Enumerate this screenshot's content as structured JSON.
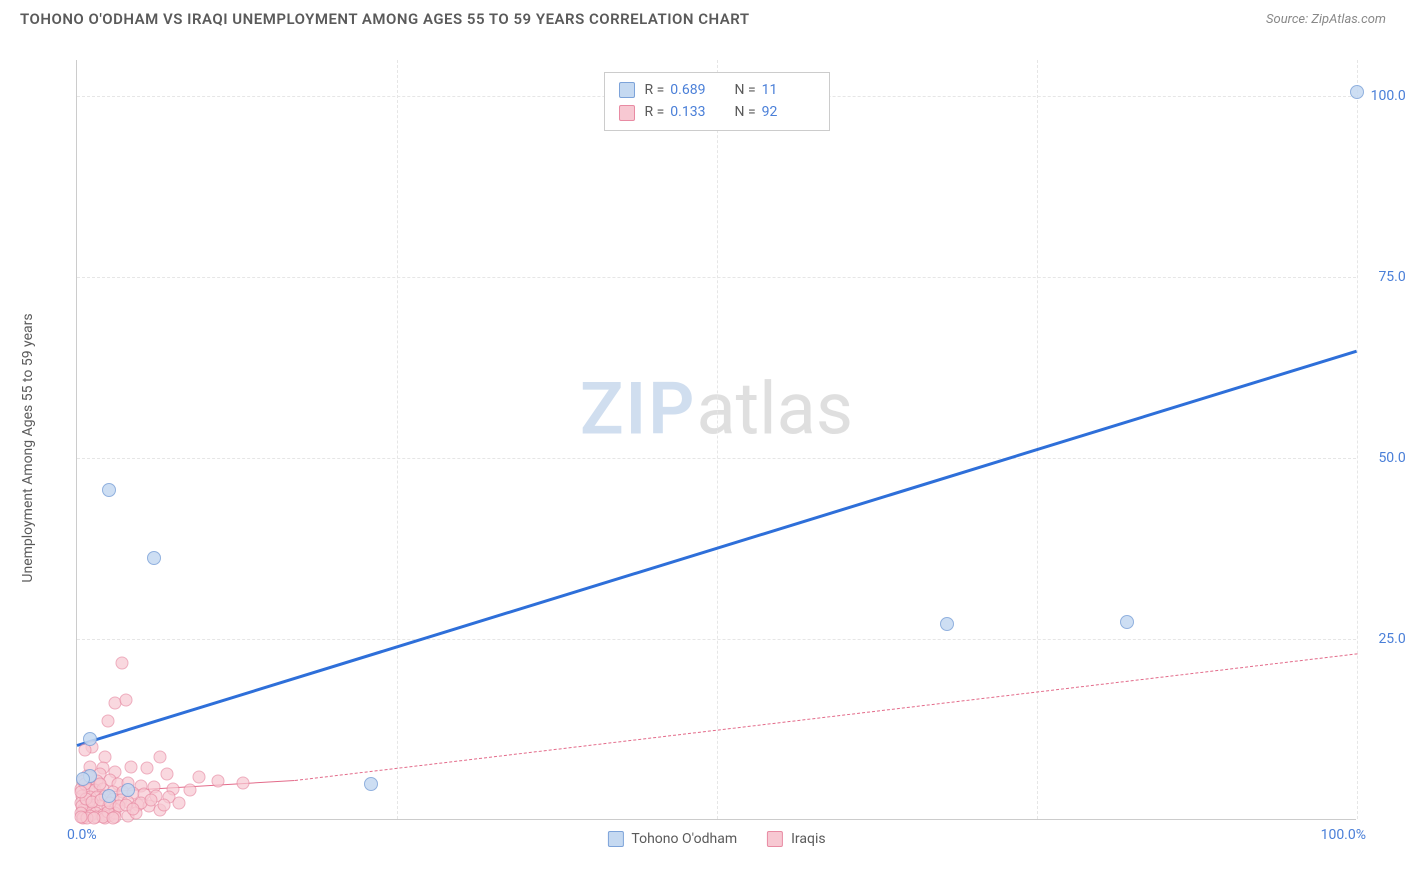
{
  "title": "TOHONO O'ODHAM VS IRAQI UNEMPLOYMENT AMONG AGES 55 TO 59 YEARS CORRELATION CHART",
  "source": "Source: ZipAtlas.com",
  "chart": {
    "type": "scatter",
    "background_color": "#ffffff",
    "grid_color": "#e6e6e6",
    "axis_color": "#cccccc",
    "ylabel": "Unemployment Among Ages 55 to 59 years",
    "label_fontsize": 14,
    "label_color": "#5a5a5a",
    "xlim": [
      0,
      100
    ],
    "ylim": [
      0,
      105
    ],
    "xtick_labels": [
      "0.0%",
      "100.0%"
    ],
    "ytick_labels": [
      "25.0%",
      "50.0%",
      "75.0%",
      "100.0%"
    ],
    "ytick_positions": [
      25,
      50,
      75,
      100
    ],
    "xgrid_positions": [
      25,
      50,
      75,
      100
    ],
    "tick_color": "#4a7fd8",
    "tick_fontsize": 14,
    "watermark": {
      "part1": "ZIP",
      "part2": "atlas"
    },
    "series": [
      {
        "name": "Tohono O'odham",
        "marker_fill": "#c5d9f1",
        "marker_stroke": "#7da3d9",
        "marker_size": 14,
        "marker_opacity": 0.85,
        "trend_color": "#2e6fd9",
        "trend_width": 3,
        "trend_style": "solid",
        "trend_start": [
          0,
          10.5
        ],
        "trend_end": [
          100,
          65
        ],
        "stats": {
          "r": "0.689",
          "n": "11"
        },
        "points": [
          [
            100,
            100.5
          ],
          [
            68,
            27
          ],
          [
            82,
            27.2
          ],
          [
            23,
            4.8
          ],
          [
            2.5,
            45.5
          ],
          [
            6,
            36
          ],
          [
            1,
            11
          ],
          [
            1,
            6
          ],
          [
            0.5,
            5.5
          ],
          [
            4,
            4
          ],
          [
            2.5,
            3.2
          ]
        ]
      },
      {
        "name": "Iraqis",
        "marker_fill": "#f7c8d2",
        "marker_stroke": "#e88ba3",
        "marker_size": 13,
        "marker_opacity": 0.7,
        "trend_color": "#e36b8a",
        "trend_width": 1,
        "trend_style": "solid",
        "trend_start": [
          0,
          3.7
        ],
        "trend_end": [
          17,
          5.5
        ],
        "trend2_style": "dashed",
        "trend2_start": [
          17,
          5.5
        ],
        "trend2_end": [
          100,
          23
        ],
        "stats": {
          "r": "0.133",
          "n": "92"
        },
        "points": [
          [
            3.5,
            21.5
          ],
          [
            3,
            16
          ],
          [
            3.8,
            16.5
          ],
          [
            2.4,
            13.5
          ],
          [
            1.2,
            10
          ],
          [
            0.6,
            9.5
          ],
          [
            2.2,
            8.5
          ],
          [
            6.5,
            8.5
          ],
          [
            1,
            7.2
          ],
          [
            2.0,
            7.0
          ],
          [
            4.2,
            7.2
          ],
          [
            5.5,
            7
          ],
          [
            0.8,
            6.0
          ],
          [
            1.8,
            6.2
          ],
          [
            3.0,
            6.5
          ],
          [
            7.0,
            6.2
          ],
          [
            9.5,
            5.8
          ],
          [
            11,
            5.3
          ],
          [
            13,
            5.0
          ],
          [
            0.5,
            5.2
          ],
          [
            1.0,
            5.0
          ],
          [
            1.6,
            5.2
          ],
          [
            2.6,
            5.4
          ],
          [
            3.2,
            4.8
          ],
          [
            4.0,
            5.0
          ],
          [
            5.0,
            4.6
          ],
          [
            6.0,
            4.4
          ],
          [
            7.5,
            4.2
          ],
          [
            8.8,
            4.0
          ],
          [
            0.3,
            4.2
          ],
          [
            0.9,
            4.0
          ],
          [
            1.4,
            4.0
          ],
          [
            2.0,
            4.2
          ],
          [
            2.8,
            3.8
          ],
          [
            3.6,
            3.8
          ],
          [
            4.4,
            3.6
          ],
          [
            5.2,
            3.4
          ],
          [
            6.2,
            3.2
          ],
          [
            7.2,
            3.0
          ],
          [
            0.4,
            3.2
          ],
          [
            1.0,
            3.0
          ],
          [
            1.6,
            3.0
          ],
          [
            2.2,
            3.2
          ],
          [
            2.8,
            2.8
          ],
          [
            3.4,
            2.6
          ],
          [
            4.0,
            2.4
          ],
          [
            4.8,
            2.0
          ],
          [
            5.6,
            1.8
          ],
          [
            0.3,
            2.2
          ],
          [
            0.8,
            2.0
          ],
          [
            1.3,
            2.0
          ],
          [
            1.8,
            1.8
          ],
          [
            2.4,
            1.6
          ],
          [
            3.0,
            1.4
          ],
          [
            0.5,
            1.2
          ],
          [
            1.0,
            1.0
          ],
          [
            1.5,
            0.8
          ],
          [
            2.0,
            0.6
          ],
          [
            2.5,
            0.4
          ],
          [
            3.0,
            0.8
          ],
          [
            0.5,
            0.3
          ],
          [
            1.0,
            0.4
          ],
          [
            1.5,
            0.3
          ],
          [
            2.2,
            0.2
          ],
          [
            2.4,
            1.0
          ],
          [
            0.4,
            1.8
          ],
          [
            0.7,
            2.8
          ],
          [
            1.2,
            2.4
          ],
          [
            1.9,
            2.6
          ],
          [
            2.6,
            2.2
          ],
          [
            3.3,
            1.8
          ],
          [
            0.3,
            0.8
          ],
          [
            4.0,
            0.4
          ],
          [
            4.6,
            0.8
          ],
          [
            5.0,
            2.2
          ],
          [
            5.8,
            2.6
          ],
          [
            6.5,
            1.2
          ],
          [
            0.5,
            0.2
          ],
          [
            0.6,
            4.8
          ],
          [
            1.8,
            4.8
          ],
          [
            2.0,
            0.3
          ],
          [
            3.0,
            0.3
          ],
          [
            0.3,
            3.8
          ],
          [
            6.8,
            2.0
          ],
          [
            8.0,
            2.2
          ],
          [
            0.8,
            0.2
          ],
          [
            1.3,
            0.2
          ],
          [
            2.8,
            0.2
          ],
          [
            3.8,
            2.0
          ],
          [
            4.4,
            1.4
          ],
          [
            0.3,
            0.3
          ],
          [
            1.0,
            5.8
          ]
        ]
      }
    ],
    "legend_bottom_fontsize": 14,
    "legend_top_fontsize": 14
  }
}
